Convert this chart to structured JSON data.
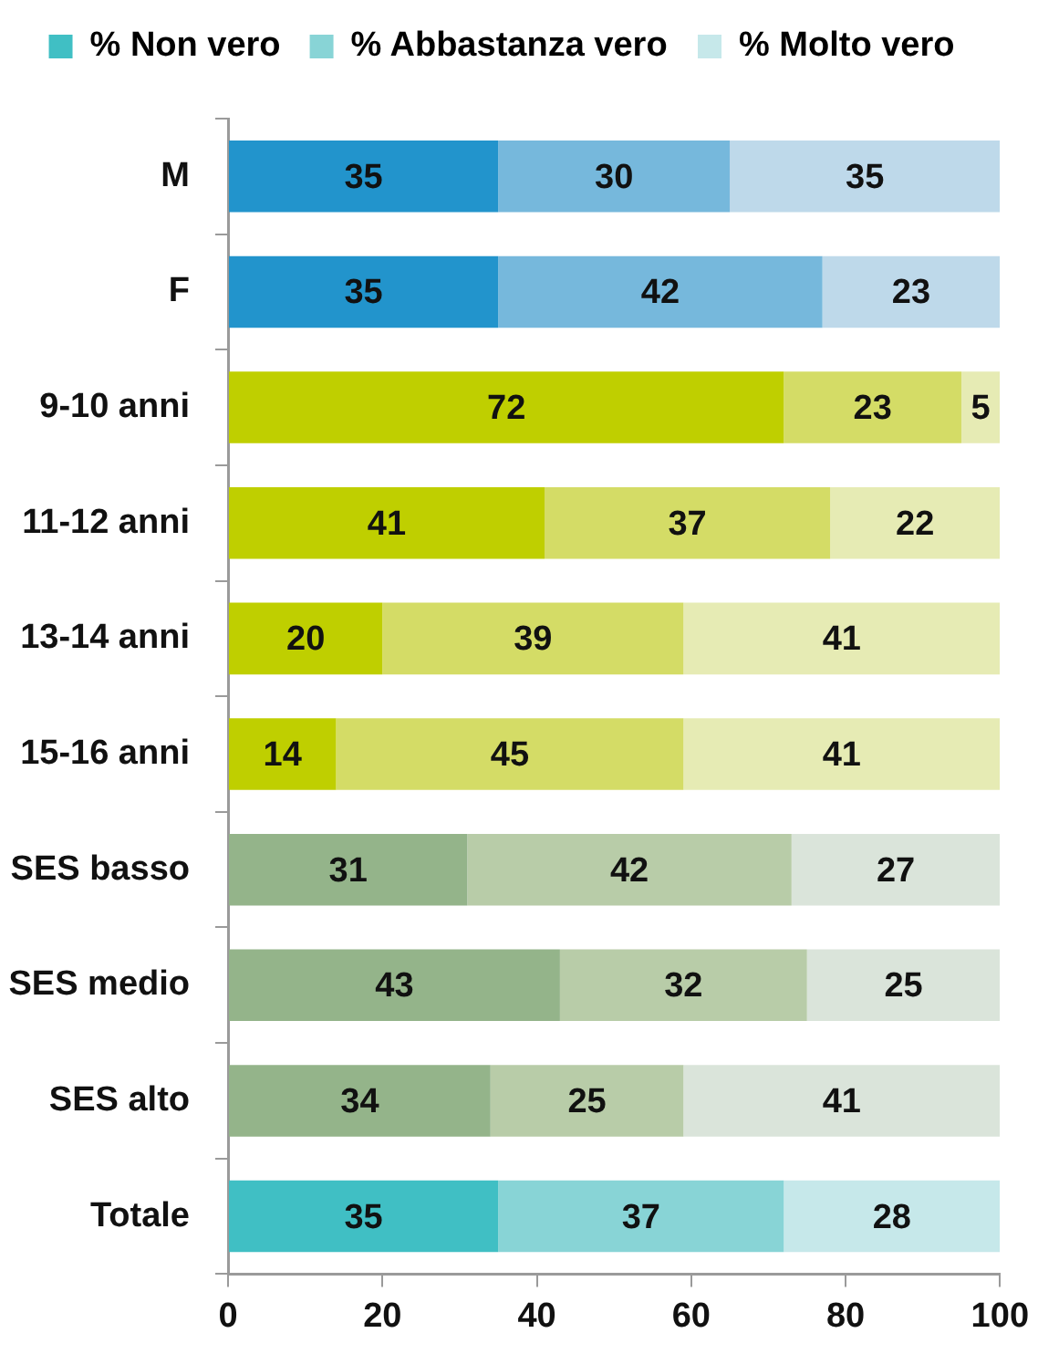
{
  "chart_data": {
    "type": "bar",
    "orientation": "horizontal",
    "stacked": true,
    "legend": "top",
    "data_labels": true,
    "grid": false,
    "categories": [
      "M",
      "F",
      "9-10 anni",
      "11-12 anni",
      "13-14 anni",
      "15-16 anni",
      "SES basso",
      "SES medio",
      "SES alto",
      "Totale"
    ],
    "xlim": [
      0,
      100
    ],
    "xticks": [
      0,
      20,
      40,
      60,
      80,
      100
    ],
    "series": [
      {
        "name": "% Non vero",
        "color": "#40bfc4",
        "colors": [
          "#2294cc",
          "#2294cc",
          "#bfcf00",
          "#bfcf00",
          "#bfcf00",
          "#bfcf00",
          "#94b48a",
          "#94b48a",
          "#94b48a",
          "#40bfc4"
        ],
        "values": [
          35,
          35,
          72,
          41,
          20,
          14,
          31,
          43,
          34,
          35
        ]
      },
      {
        "name": "% Abbastanza vero",
        "color": "#88d4d6",
        "colors": [
          "#76b8dc",
          "#76b8dc",
          "#d4dc66",
          "#d4dc66",
          "#d4dc66",
          "#d4dc66",
          "#b8cca8",
          "#b8cca8",
          "#b8cca8",
          "#88d4d6"
        ],
        "values": [
          30,
          42,
          23,
          37,
          39,
          45,
          42,
          32,
          25,
          37
        ]
      },
      {
        "name": "% Molto vero",
        "color": "#c6e8ea",
        "colors": [
          "#bed9ea",
          "#bed9ea",
          "#e6ebb4",
          "#e6ebb4",
          "#e6ebb4",
          "#e6ebb4",
          "#dae4da",
          "#dae4da",
          "#dae4da",
          "#c6e8ea"
        ],
        "values": [
          35,
          23,
          5,
          22,
          41,
          41,
          27,
          25,
          41,
          28
        ]
      }
    ]
  }
}
